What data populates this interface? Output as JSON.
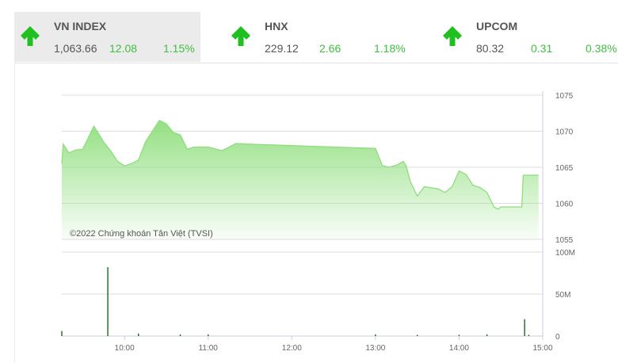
{
  "indices": [
    {
      "name": "VN INDEX",
      "value": "1,063.66",
      "change": "12.08",
      "percent": "1.15%",
      "direction": "up",
      "icon": "arrow-up-icon"
    },
    {
      "name": "HNX",
      "value": "229.12",
      "change": "2.66",
      "percent": "1.18%",
      "direction": "up",
      "icon": "arrow-up-icon"
    },
    {
      "name": "UPCOM",
      "value": "80.32",
      "change": "0.31",
      "percent": "0.38%",
      "direction": "up",
      "icon": "arrow-up-icon"
    }
  ],
  "colors": {
    "up": "#3fbf3f",
    "arrow": "#1fc01f",
    "area": "#90e080",
    "volume": "#1a6a1a"
  },
  "chart_data": {
    "type": "area",
    "watermark": "©2022 Chứng khoán Tân Việt (TVSI)",
    "x_ticks": [
      "10:00",
      "11:00",
      "12:00",
      "13:00",
      "14:00",
      "15:00"
    ],
    "price": {
      "y_ticks": [
        "1075",
        "1070",
        "1065",
        "1060",
        "1055"
      ],
      "ylim": [
        1055,
        1075
      ],
      "points": [
        [
          "9:15",
          1065.5
        ],
        [
          "9:16",
          1068.2
        ],
        [
          "9:20",
          1067
        ],
        [
          "9:25",
          1067.4
        ],
        [
          "9:30",
          1067.5
        ],
        [
          "9:35",
          1069.5
        ],
        [
          "9:38",
          1070.7
        ],
        [
          "9:45",
          1068.5
        ],
        [
          "9:50",
          1067.3
        ],
        [
          "9:55",
          1065.8
        ],
        [
          "10:00",
          1065.2
        ],
        [
          "10:05",
          1065.5
        ],
        [
          "10:10",
          1066
        ],
        [
          "10:15",
          1068.5
        ],
        [
          "10:20",
          1070
        ],
        [
          "10:25",
          1071.5
        ],
        [
          "10:30",
          1071
        ],
        [
          "10:35",
          1069.8
        ],
        [
          "10:40",
          1069.5
        ],
        [
          "10:45",
          1067.5
        ],
        [
          "10:50",
          1067.8
        ],
        [
          "11:00",
          1067.8
        ],
        [
          "11:10",
          1067.3
        ],
        [
          "11:20",
          1068.3
        ],
        [
          "11:30",
          1068.2
        ],
        [
          "13:00",
          1067.6
        ],
        [
          "13:05",
          1065.2
        ],
        [
          "13:10",
          1065
        ],
        [
          "13:15",
          1065.3
        ],
        [
          "13:20",
          1065.8
        ],
        [
          "13:22",
          1065.2
        ],
        [
          "13:25",
          1063
        ],
        [
          "13:30",
          1061
        ],
        [
          "13:35",
          1062.3
        ],
        [
          "13:45",
          1062
        ],
        [
          "13:50",
          1061.5
        ],
        [
          "13:55",
          1062.3
        ],
        [
          "14:00",
          1064.5
        ],
        [
          "14:05",
          1064
        ],
        [
          "14:10",
          1062.5
        ],
        [
          "14:15",
          1062.2
        ],
        [
          "14:20",
          1061.5
        ],
        [
          "14:25",
          1059.5
        ],
        [
          "14:28",
          1059.2
        ],
        [
          "14:30",
          1059.5
        ],
        [
          "14:45",
          1059.5
        ],
        [
          "14:46",
          1063.9
        ],
        [
          "14:57",
          1063.9
        ]
      ]
    },
    "volume": {
      "y_ticks": [
        "100M",
        "50M",
        "0"
      ],
      "ylim": [
        0,
        100
      ],
      "unit": "M",
      "bars": [
        [
          "9:15",
          6
        ],
        [
          "9:48",
          82
        ],
        [
          "10:10",
          3
        ],
        [
          "10:40",
          2
        ],
        [
          "11:00",
          2
        ],
        [
          "13:00",
          2
        ],
        [
          "13:30",
          1.5
        ],
        [
          "14:00",
          1.5
        ],
        [
          "14:20",
          2
        ],
        [
          "14:47",
          20
        ],
        [
          "14:50",
          1.5
        ]
      ]
    }
  }
}
